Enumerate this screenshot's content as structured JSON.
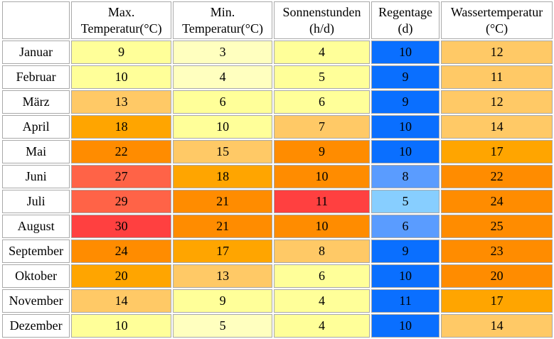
{
  "headers": [
    {
      "line1": "Max.",
      "line2": "Temperatur(°C)"
    },
    {
      "line1": "Min.",
      "line2": "Temperatur(°C)"
    },
    {
      "line1": "Sonnenstunden",
      "line2": "(h/d)"
    },
    {
      "line1": "Regentage",
      "line2": "(d)"
    },
    {
      "line1": "Wassertemperatur",
      "line2": "(°C)"
    }
  ],
  "rows": [
    {
      "month": "Januar",
      "values": [
        "9",
        "3",
        "4",
        "10",
        "12"
      ],
      "colors": [
        "#ffff99",
        "#ffffbf",
        "#ffff99",
        "#0a6fff",
        "#ffc966"
      ]
    },
    {
      "month": "Februar",
      "values": [
        "10",
        "4",
        "5",
        "9",
        "11"
      ],
      "colors": [
        "#ffff99",
        "#ffffbf",
        "#ffff99",
        "#0a6fff",
        "#ffc966"
      ]
    },
    {
      "month": "März",
      "values": [
        "13",
        "6",
        "6",
        "9",
        "12"
      ],
      "colors": [
        "#ffc966",
        "#ffff99",
        "#ffff99",
        "#0a6fff",
        "#ffc966"
      ]
    },
    {
      "month": "April",
      "values": [
        "18",
        "10",
        "7",
        "10",
        "14"
      ],
      "colors": [
        "#ffa500",
        "#ffff99",
        "#ffc966",
        "#0a6fff",
        "#ffc966"
      ]
    },
    {
      "month": "Mai",
      "values": [
        "22",
        "15",
        "9",
        "10",
        "17"
      ],
      "colors": [
        "#ff8c00",
        "#ffc966",
        "#ff8c00",
        "#0a6fff",
        "#ffa500"
      ]
    },
    {
      "month": "Juni",
      "values": [
        "27",
        "18",
        "10",
        "8",
        "22"
      ],
      "colors": [
        "#ff6347",
        "#ffa500",
        "#ff8c00",
        "#5a9cff",
        "#ff8c00"
      ]
    },
    {
      "month": "Juli",
      "values": [
        "29",
        "21",
        "11",
        "5",
        "24"
      ],
      "colors": [
        "#ff6347",
        "#ff8c00",
        "#ff4040",
        "#87ceff",
        "#ff8c00"
      ]
    },
    {
      "month": "August",
      "values": [
        "30",
        "21",
        "10",
        "6",
        "25"
      ],
      "colors": [
        "#ff4040",
        "#ff8c00",
        "#ff8c00",
        "#5a9cff",
        "#ff8c00"
      ]
    },
    {
      "month": "September",
      "values": [
        "24",
        "17",
        "8",
        "9",
        "23"
      ],
      "colors": [
        "#ff8c00",
        "#ffa500",
        "#ffc966",
        "#0a6fff",
        "#ff8c00"
      ]
    },
    {
      "month": "Oktober",
      "values": [
        "20",
        "13",
        "6",
        "10",
        "20"
      ],
      "colors": [
        "#ffa500",
        "#ffc966",
        "#ffff99",
        "#0a6fff",
        "#ff8c00"
      ]
    },
    {
      "month": "November",
      "values": [
        "14",
        "9",
        "4",
        "11",
        "17"
      ],
      "colors": [
        "#ffc966",
        "#ffff99",
        "#ffff99",
        "#0a6fff",
        "#ffa500"
      ]
    },
    {
      "month": "Dezember",
      "values": [
        "10",
        "5",
        "4",
        "10",
        "14"
      ],
      "colors": [
        "#ffff99",
        "#ffffbf",
        "#ffff99",
        "#0a6fff",
        "#ffc966"
      ]
    }
  ]
}
